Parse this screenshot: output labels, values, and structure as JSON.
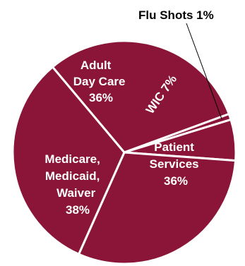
{
  "chart_data": {
    "type": "pie",
    "colors": {
      "slice_fill": "#8b1538",
      "slice_border": "#ffffff",
      "leader_line": "#000000"
    },
    "slices": [
      {
        "name": "Adult Day Care",
        "lines": [
          "Adult",
          "Day Care",
          "36%"
        ],
        "value": 36
      },
      {
        "name": "Flu Shots",
        "lines": [
          "Flu Shots  1%"
        ],
        "value": 1
      },
      {
        "name": "WIC",
        "lines": [
          "WIC 7%"
        ],
        "value": 7
      },
      {
        "name": "Patient Services",
        "lines": [
          "Patient",
          "Services",
          "36%"
        ],
        "value": 36
      },
      {
        "name": "Medicare, Medicaid, Waiver",
        "lines": [
          "Medicare,",
          "Medicaid,",
          "Waiver",
          "38%"
        ],
        "value": 38
      }
    ]
  }
}
